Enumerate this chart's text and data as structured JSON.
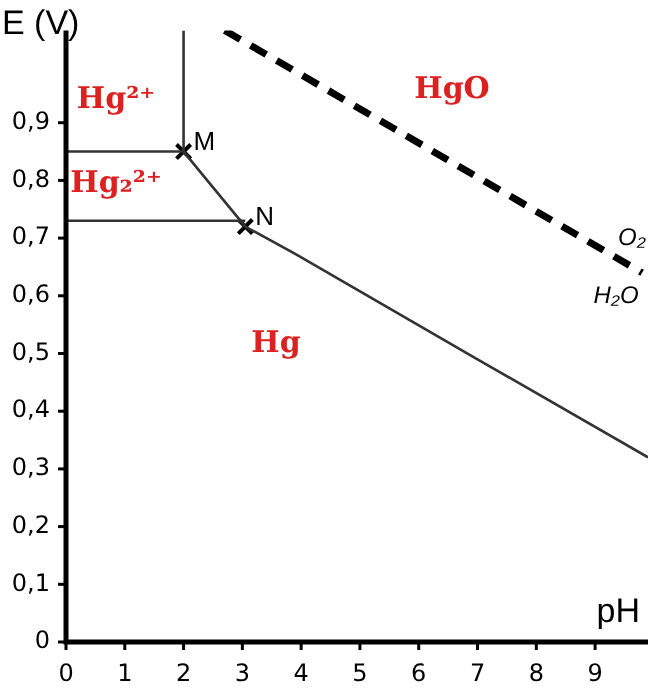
{
  "chart_data": {
    "type": "line",
    "xlabel": "pH",
    "ylabel": "E (V)",
    "xlim": [
      0,
      9.9
    ],
    "ylim": [
      0,
      1.06
    ],
    "xticks": [
      0,
      1,
      2,
      3,
      4,
      5,
      6,
      7,
      8,
      9
    ],
    "yticks": [
      0,
      {
        "value": 0.1,
        "label": "0,1"
      },
      {
        "value": 0.2,
        "label": "0,2"
      },
      {
        "value": 0.3,
        "label": "0,3"
      },
      {
        "value": 0.4,
        "label": "0,4"
      },
      {
        "value": 0.5,
        "label": "0,5"
      },
      {
        "value": 0.6,
        "label": "0,6"
      },
      {
        "value": 0.7,
        "label": "0,7"
      },
      {
        "value": 0.8,
        "label": "0,8"
      },
      {
        "value": 0.9,
        "label": "0,9"
      }
    ],
    "grid": false,
    "legend": false,
    "marker": "none",
    "series": [
      {
        "color": "#333333",
        "line_style": "solid",
        "x": [
          0,
          2
        ],
        "values": [
          0.85,
          0.85
        ]
      },
      {
        "color": "#333333",
        "line_style": "solid",
        "x": [
          2,
          2
        ],
        "values": [
          0.85,
          1.06
        ]
      },
      {
        "color": "#333333",
        "line_style": "solid",
        "x": [
          0,
          3.05
        ],
        "values": [
          0.73,
          0.73
        ]
      },
      {
        "color": "#333333",
        "line_style": "solid",
        "x": [
          2,
          3.05,
          3.86,
          7,
          9.9
        ],
        "values": [
          0.85,
          0.72,
          0.675,
          0.49,
          0.32
        ]
      },
      {
        "color": "#000000",
        "line_style": "dashed",
        "x": [
          2.7,
          9.8
        ],
        "values": [
          1.06,
          0.64
        ]
      },
      {
        "type": "scatter",
        "color": "#000000",
        "marker": "cross",
        "x": [
          2,
          3.05
        ],
        "values": [
          0.85,
          0.72
        ],
        "value_labels": [
          "M",
          "N"
        ]
      }
    ],
    "annotations": [
      "Hg²⁺",
      "Hg₂²⁺",
      "HgO",
      "Hg",
      "O₂",
      "H₂O"
    ]
  }
}
